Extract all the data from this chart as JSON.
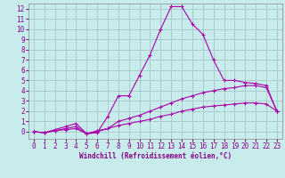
{
  "xlabel": "Windchill (Refroidissement éolien,°C)",
  "bg_color": "#c8ecec",
  "line_color": "#aa00aa",
  "grid_color": "#aacccc",
  "xlim": [
    -0.5,
    23.5
  ],
  "ylim": [
    -0.7,
    12.5
  ],
  "xticks": [
    0,
    1,
    2,
    3,
    4,
    5,
    6,
    7,
    8,
    9,
    10,
    11,
    12,
    13,
    14,
    15,
    16,
    17,
    18,
    19,
    20,
    21,
    22,
    23
  ],
  "yticks": [
    0,
    1,
    2,
    3,
    4,
    5,
    6,
    7,
    8,
    9,
    10,
    11,
    12
  ],
  "series1_x": [
    0,
    1,
    2,
    3,
    4,
    5,
    6,
    7,
    8,
    9,
    10,
    11,
    12,
    13,
    14,
    15,
    16,
    17,
    18,
    19,
    20,
    21,
    22,
    23
  ],
  "series1_y": [
    0,
    -0.1,
    0.2,
    0.5,
    0.8,
    -0.2,
    -0.1,
    1.5,
    3.5,
    3.5,
    5.5,
    7.5,
    10.0,
    12.2,
    12.2,
    10.5,
    9.5,
    7.0,
    5.0,
    5.0,
    4.8,
    4.7,
    4.5,
    2.0
  ],
  "series2_x": [
    0,
    1,
    2,
    3,
    4,
    5,
    6,
    7,
    8,
    9,
    10,
    11,
    12,
    13,
    14,
    15,
    16,
    17,
    18,
    19,
    20,
    21,
    22,
    23
  ],
  "series2_y": [
    0,
    -0.1,
    0.1,
    0.3,
    0.5,
    -0.2,
    0.0,
    0.3,
    1.0,
    1.3,
    1.6,
    2.0,
    2.4,
    2.8,
    3.2,
    3.5,
    3.8,
    4.0,
    4.2,
    4.3,
    4.5,
    4.5,
    4.3,
    2.0
  ],
  "series3_x": [
    0,
    1,
    2,
    3,
    4,
    5,
    6,
    7,
    8,
    9,
    10,
    11,
    12,
    13,
    14,
    15,
    16,
    17,
    18,
    19,
    20,
    21,
    22,
    23
  ],
  "series3_y": [
    0,
    -0.1,
    0.1,
    0.2,
    0.3,
    -0.2,
    0.1,
    0.3,
    0.6,
    0.8,
    1.0,
    1.2,
    1.5,
    1.7,
    2.0,
    2.2,
    2.4,
    2.5,
    2.6,
    2.7,
    2.8,
    2.8,
    2.7,
    2.0
  ],
  "xlabel_fontsize": 5.5,
  "tick_fontsize": 5.5
}
